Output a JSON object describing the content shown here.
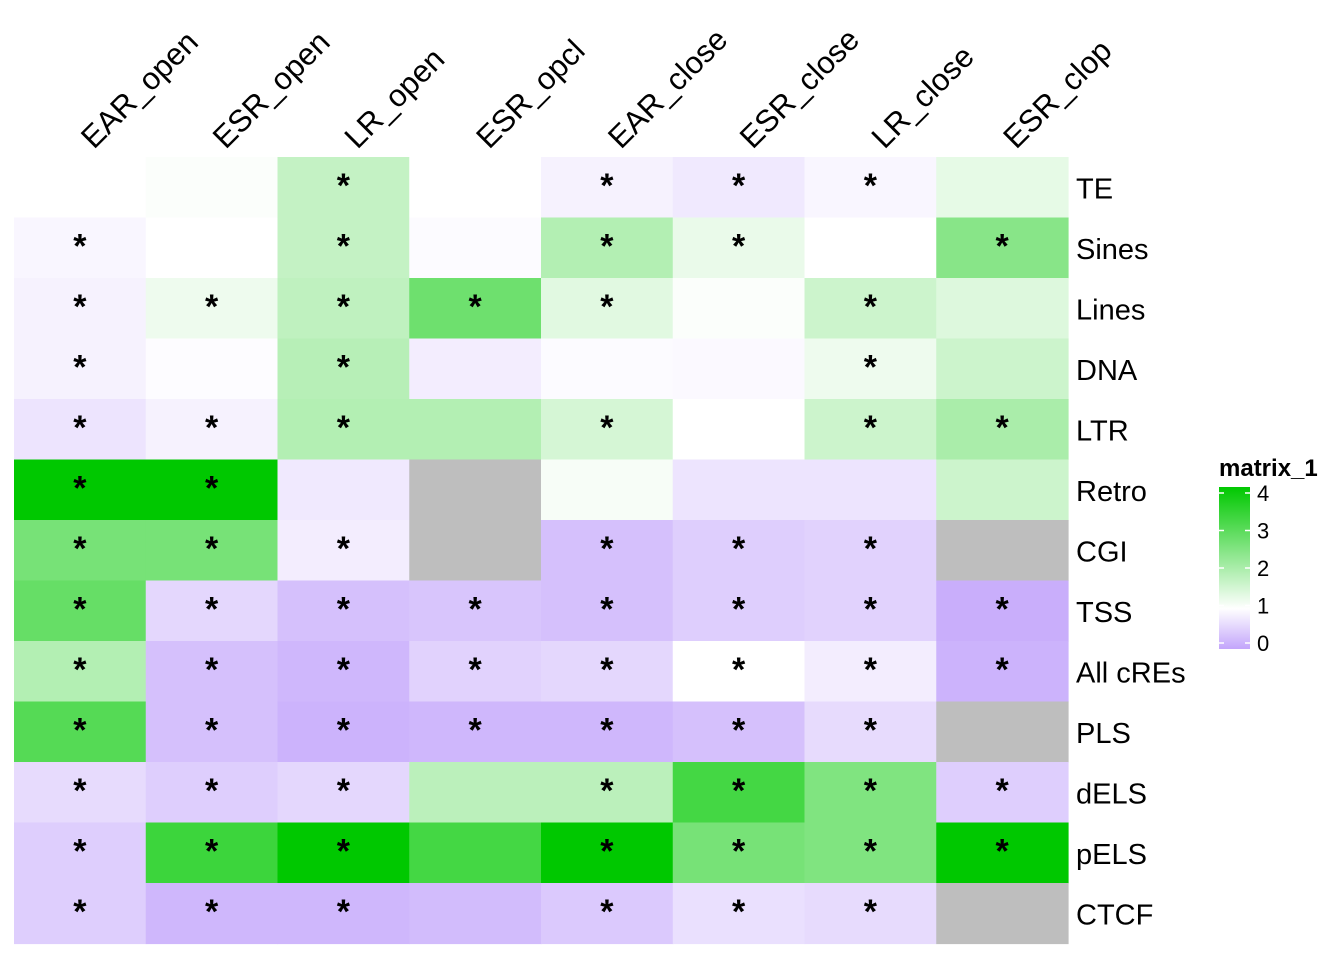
{
  "chart_data": {
    "type": "heatmap",
    "columns": [
      "EAR_open",
      "ESR_open",
      "LR_open",
      "ESR_opcl",
      "EAR_close",
      "ESR_close",
      "LR_close",
      "ESR_clop"
    ],
    "rows": [
      "TE",
      "Sines",
      "Lines",
      "DNA",
      "LTR",
      "Retro",
      "CGI",
      "TSS",
      "All cREs",
      "PLS",
      "dELS",
      "pELS",
      "CTCF"
    ],
    "values": [
      [
        1.0,
        1.05,
        1.7,
        1.0,
        0.85,
        0.75,
        0.9,
        1.3
      ],
      [
        0.9,
        1.0,
        1.7,
        0.95,
        1.9,
        1.25,
        1.0,
        2.4
      ],
      [
        0.85,
        1.2,
        1.75,
        2.7,
        1.35,
        1.05,
        1.6,
        1.4
      ],
      [
        0.85,
        0.97,
        1.85,
        0.8,
        0.95,
        0.93,
        1.2,
        1.6
      ],
      [
        0.7,
        0.85,
        1.9,
        1.9,
        1.5,
        1.0,
        1.6,
        2.0
      ],
      [
        4.0,
        4.0,
        0.75,
        null,
        1.1,
        0.7,
        0.7,
        1.6
      ],
      [
        2.6,
        2.6,
        0.8,
        null,
        0.3,
        0.45,
        0.5,
        null
      ],
      [
        2.8,
        0.55,
        0.3,
        0.35,
        0.3,
        0.45,
        0.5,
        0.1
      ],
      [
        1.9,
        0.3,
        0.2,
        0.5,
        0.55,
        1.0,
        0.8,
        0.15
      ],
      [
        3.0,
        0.3,
        0.15,
        0.2,
        0.2,
        0.3,
        0.6,
        null
      ],
      [
        0.6,
        0.45,
        0.55,
        1.8,
        1.8,
        3.2,
        2.5,
        0.45
      ],
      [
        0.45,
        3.3,
        4.0,
        3.2,
        4.0,
        2.6,
        2.5,
        4.0
      ],
      [
        0.45,
        0.2,
        0.2,
        0.25,
        0.4,
        0.65,
        0.6,
        null
      ]
    ],
    "significant": [
      [
        false,
        false,
        true,
        false,
        true,
        true,
        true,
        false
      ],
      [
        true,
        false,
        true,
        false,
        true,
        true,
        false,
        true
      ],
      [
        true,
        true,
        true,
        true,
        true,
        false,
        true,
        false
      ],
      [
        true,
        false,
        true,
        false,
        false,
        false,
        true,
        false
      ],
      [
        true,
        true,
        true,
        false,
        true,
        false,
        true,
        true
      ],
      [
        true,
        true,
        false,
        false,
        false,
        false,
        false,
        false
      ],
      [
        true,
        true,
        true,
        false,
        true,
        true,
        true,
        false
      ],
      [
        true,
        true,
        true,
        true,
        true,
        true,
        true,
        true
      ],
      [
        true,
        true,
        true,
        true,
        true,
        true,
        true,
        true
      ],
      [
        true,
        true,
        true,
        true,
        true,
        true,
        true,
        false
      ],
      [
        true,
        true,
        true,
        false,
        true,
        true,
        true,
        true
      ],
      [
        true,
        true,
        true,
        false,
        true,
        true,
        true,
        true
      ],
      [
        true,
        true,
        true,
        false,
        true,
        true,
        true,
        false
      ]
    ],
    "significance_marker": "*",
    "na_color": "#bebebe",
    "color_scale": {
      "stops": [
        {
          "value": 0,
          "color": "#c3a5fb"
        },
        {
          "value": 1,
          "color": "#ffffff"
        },
        {
          "value": 4,
          "color": "#00c800"
        }
      ]
    },
    "legend": {
      "title": "matrix_1",
      "ticks": [
        0,
        1,
        2,
        3,
        4
      ],
      "placement": "right"
    }
  }
}
